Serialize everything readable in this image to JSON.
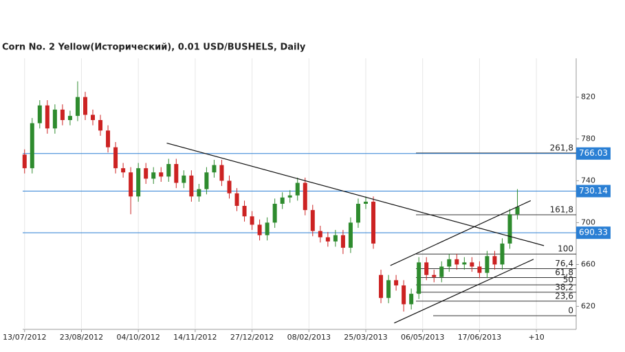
{
  "chart_data": {
    "type": "candlestick",
    "title": "Corn  No. 2 Yellow(Исторический), 0.01 USD/BUSHELS, Daily",
    "x": [
      0,
      4,
      8,
      12,
      16,
      20,
      24,
      28,
      32,
      36,
      40,
      44,
      48,
      52,
      56,
      60,
      64,
      68,
      72,
      76,
      80,
      84,
      88,
      92,
      96,
      100,
      104,
      108,
      112,
      116,
      120,
      124,
      128,
      132,
      136,
      140,
      144,
      148,
      152,
      156,
      160,
      164,
      168,
      172,
      176,
      180,
      184,
      188,
      192,
      196,
      200,
      204,
      208,
      212,
      216,
      220,
      224,
      228,
      232,
      236,
      240,
      244,
      248,
      252,
      256,
      260
    ],
    "open": [
      765,
      752,
      795,
      812,
      790,
      808,
      798,
      802,
      820,
      803,
      798,
      788,
      772,
      752,
      748,
      725,
      752,
      742,
      748,
      744,
      756,
      738,
      745,
      725,
      732,
      748,
      755,
      740,
      728,
      716,
      706,
      698,
      688,
      700,
      718,
      724,
      726,
      738,
      712,
      692,
      686,
      682,
      688,
      676,
      700,
      718,
      720,
      650,
      628,
      645,
      640,
      622,
      632,
      662,
      650,
      648,
      658,
      665,
      660,
      662,
      658,
      652,
      668,
      660,
      680,
      708
    ],
    "high": [
      770,
      800,
      817,
      817,
      813,
      813,
      807,
      835,
      825,
      808,
      803,
      793,
      777,
      757,
      753,
      757,
      757,
      753,
      753,
      761,
      761,
      750,
      750,
      737,
      753,
      760,
      760,
      745,
      733,
      721,
      711,
      703,
      705,
      723,
      729,
      731,
      743,
      743,
      717,
      697,
      691,
      693,
      693,
      705,
      723,
      725,
      725,
      655,
      650,
      650,
      645,
      637,
      667,
      667,
      655,
      663,
      670,
      670,
      667,
      667,
      663,
      673,
      673,
      685,
      713,
      732
    ],
    "low": [
      747,
      747,
      790,
      785,
      785,
      793,
      793,
      797,
      798,
      793,
      783,
      767,
      747,
      743,
      708,
      720,
      737,
      737,
      739,
      739,
      733,
      733,
      720,
      720,
      727,
      743,
      735,
      723,
      711,
      701,
      693,
      683,
      683,
      695,
      713,
      719,
      721,
      707,
      687,
      681,
      677,
      677,
      670,
      671,
      695,
      713,
      675,
      623,
      623,
      635,
      615,
      617,
      627,
      645,
      643,
      643,
      653,
      655,
      655,
      653,
      647,
      647,
      655,
      655,
      675,
      703
    ],
    "close": [
      752,
      795,
      812,
      790,
      808,
      798,
      802,
      820,
      803,
      798,
      788,
      772,
      752,
      748,
      725,
      752,
      742,
      748,
      744,
      756,
      738,
      745,
      725,
      732,
      748,
      755,
      740,
      728,
      716,
      706,
      698,
      688,
      700,
      718,
      724,
      726,
      738,
      712,
      692,
      686,
      682,
      688,
      676,
      700,
      718,
      720,
      680,
      628,
      645,
      640,
      622,
      632,
      662,
      650,
      648,
      658,
      665,
      660,
      662,
      658,
      652,
      668,
      660,
      680,
      708,
      715
    ],
    "up_color": "#2e8b2e",
    "down_color": "#cc2222",
    "xlim": [
      -1,
      291
    ],
    "ylim": [
      598,
      857
    ],
    "xticks": [
      {
        "value": 0,
        "label": "13/07/2012"
      },
      {
        "value": 30,
        "label": "23/08/2012"
      },
      {
        "value": 60,
        "label": "04/10/2012"
      },
      {
        "value": 90,
        "label": "14/11/2012"
      },
      {
        "value": 120,
        "label": "27/12/2012"
      },
      {
        "value": 150,
        "label": "08/02/2013"
      },
      {
        "value": 180,
        "label": "25/03/2013"
      },
      {
        "value": 210,
        "label": "06/05/2013"
      },
      {
        "value": 240,
        "label": "17/06/2013"
      },
      {
        "value": 270,
        "label": "+10"
      }
    ],
    "yticks": [
      620,
      660,
      700,
      740,
      780,
      820
    ],
    "levels": [
      {
        "value": 766.03,
        "label": "766.03"
      },
      {
        "value": 730.14,
        "label": "730.14"
      },
      {
        "value": 690.33,
        "label": "690.33"
      }
    ],
    "level_color": "#2a7fd4",
    "fibonacci": [
      {
        "label": "0",
        "value": 611
      },
      {
        "label": "23,6",
        "value": 625
      },
      {
        "label": "38,2",
        "value": 633.5
      },
      {
        "label": "50",
        "value": 640.5
      },
      {
        "label": "61,8",
        "value": 647.5
      },
      {
        "label": "76,4",
        "value": 656
      },
      {
        "label": "100",
        "value": 670
      },
      {
        "label": "161,8",
        "value": 707.5
      },
      {
        "label": "261,8",
        "value": 766.5
      }
    ],
    "trendlines": [
      {
        "x": [
          75,
          274
        ],
        "y": [
          776,
          678
        ]
      },
      {
        "x": [
          193,
          267
        ],
        "y": [
          659,
          721
        ]
      },
      {
        "x": [
          195,
          268.5
        ],
        "y": [
          604,
          665
        ]
      }
    ]
  }
}
